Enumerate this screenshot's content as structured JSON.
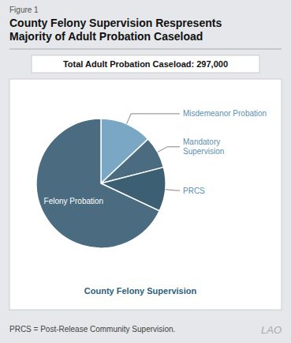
{
  "chart_data": {
    "type": "pie",
    "title": "County Felony Supervision Respresents\nMajority of Adult Probation Caseload",
    "subtitle": "Total Adult Probation Caseload: 297,000",
    "categories": [
      "Misdemeanor Probation",
      "Mandatory\nSupervision",
      "PRCS",
      "Felony Probation"
    ],
    "values": [
      13,
      8,
      11,
      68
    ],
    "colors": [
      "#7aa8c4",
      "#4a6b80",
      "#3d5f73",
      "#4a6b80"
    ],
    "annotations": [
      "Figure 1",
      "County Felony Supervision",
      "PRCS = Post-Release Community Supervision.",
      "LAO"
    ]
  }
}
